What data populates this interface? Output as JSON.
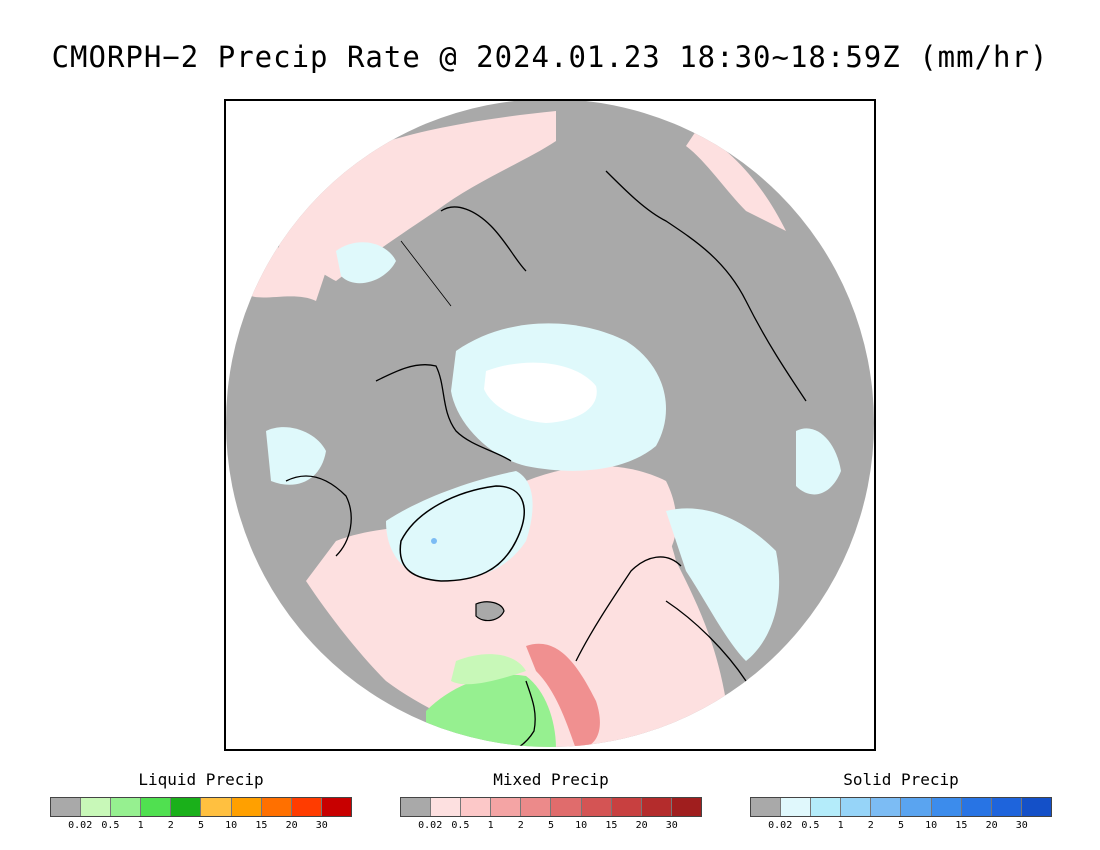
{
  "title": "CMORPH−2 Precip Rate @ 2024.01.23 18:30~18:59Z (mm/hr)",
  "colors": {
    "no_data_gray": "#a9a9a9",
    "mixed_light": "#fde0e0",
    "solid_light": "#dff9fb",
    "coast": "#000000"
  },
  "legends": [
    {
      "title": "Liquid Precip",
      "colors": [
        "#a9a9a9",
        "#c8f8b8",
        "#96f090",
        "#50e050",
        "#1ab01a",
        "#ffc040",
        "#ffa000",
        "#ff7000",
        "#ff3c00",
        "#c80000"
      ],
      "ticks": [
        "0.02",
        "0.5",
        "1",
        "2",
        "5",
        "10",
        "15",
        "20",
        "30"
      ]
    },
    {
      "title": "Mixed Precip",
      "colors": [
        "#a9a9a9",
        "#fde0e0",
        "#fcc8c8",
        "#f4a4a4",
        "#ec8a8a",
        "#e06c6c",
        "#d45454",
        "#c84040",
        "#b42c2c",
        "#a01e1e"
      ],
      "ticks": [
        "0.02",
        "0.5",
        "1",
        "2",
        "5",
        "10",
        "15",
        "20",
        "30"
      ]
    },
    {
      "title": "Solid Precip",
      "colors": [
        "#a9a9a9",
        "#e0f8fc",
        "#b4ecfa",
        "#96d4f8",
        "#7cbcf4",
        "#5aa4f0",
        "#3c8cec",
        "#2874e4",
        "#1e64dc",
        "#1450c8"
      ],
      "ticks": [
        "0.02",
        "0.5",
        "1",
        "2",
        "5",
        "10",
        "15",
        "20",
        "30"
      ]
    }
  ]
}
